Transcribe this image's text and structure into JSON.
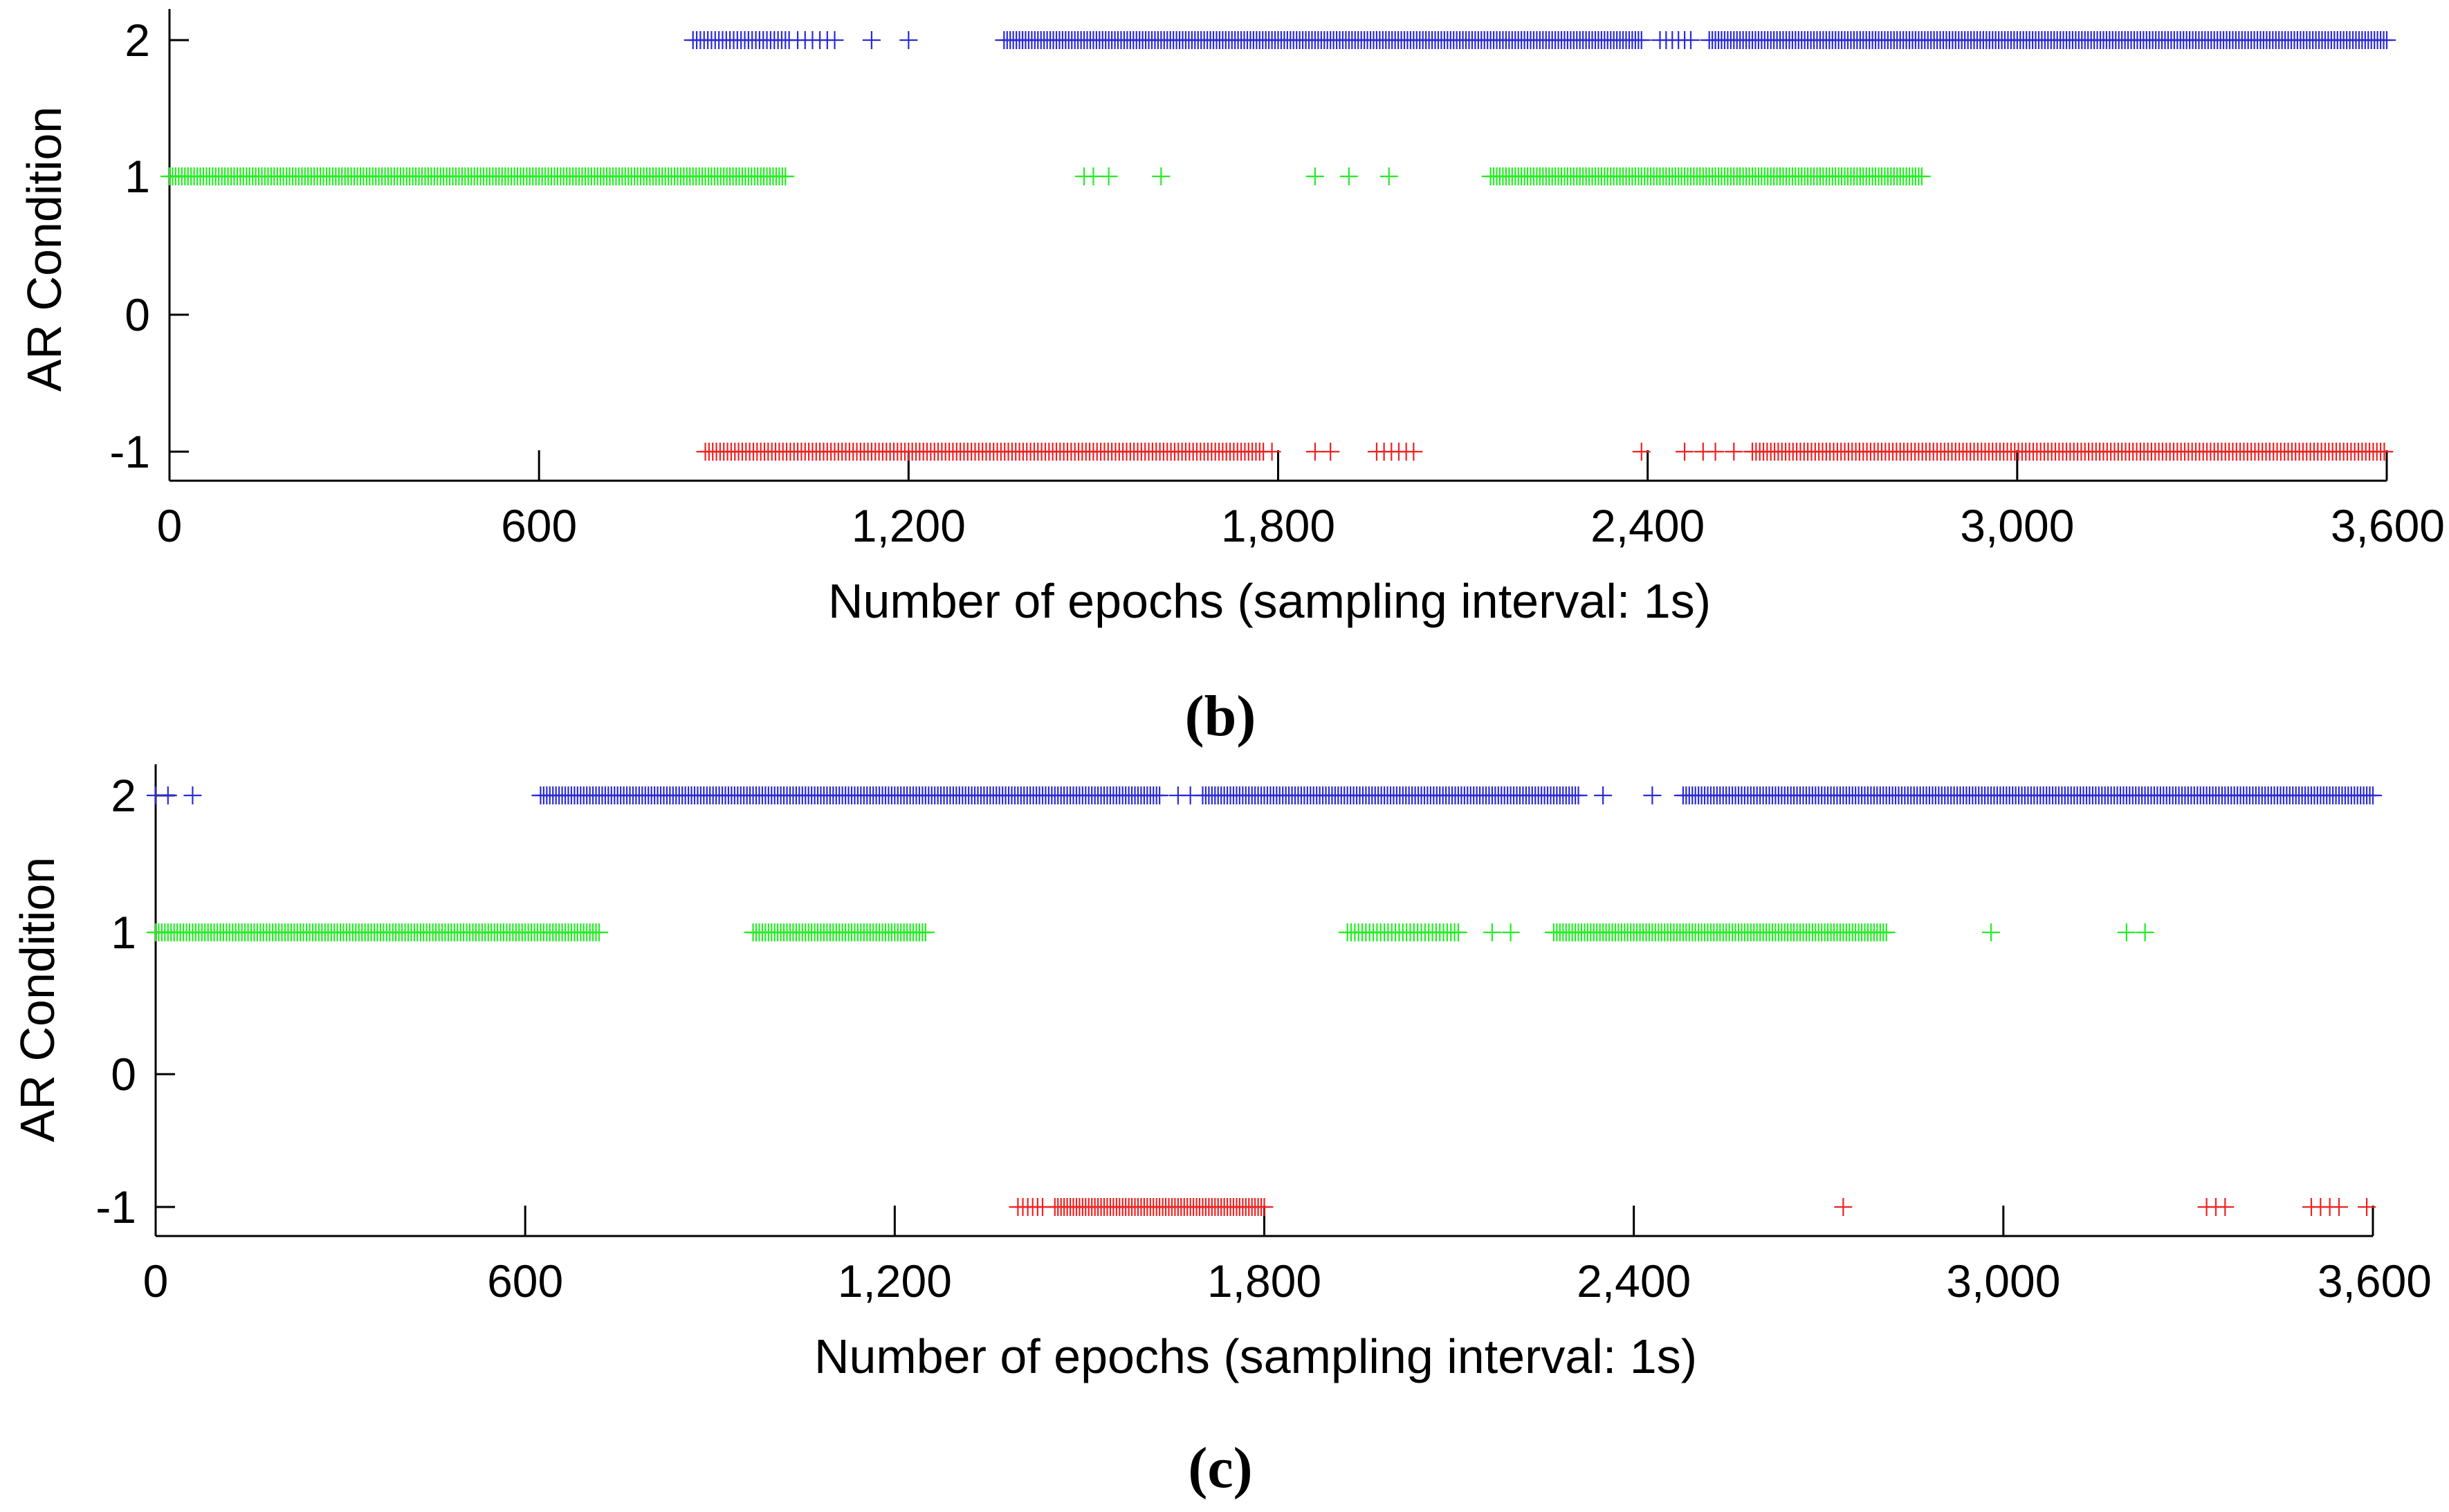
{
  "colors": {
    "class_2": "#2b2bd6",
    "class_1": "#22ee22",
    "class_neg1": "#ee2222",
    "axis": "#000000"
  },
  "chart_data": [
    {
      "id": "b",
      "type": "scatter",
      "caption_letter": "b",
      "caption_open": "(",
      "caption_close": ")",
      "xlabel": "Number of epochs (sampling interval: 1s)",
      "ylabel": "AR Condition",
      "xlim": [
        0,
        3600
      ],
      "ylim": [
        -1.2,
        2.2
      ],
      "xticks": [
        {
          "value": 0,
          "label": "0"
        },
        {
          "value": 600,
          "label": "600"
        },
        {
          "value": 1200,
          "label": "1,200"
        },
        {
          "value": 1800,
          "label": "1,800"
        },
        {
          "value": 2400,
          "label": "2,400"
        },
        {
          "value": 3000,
          "label": "3,000"
        },
        {
          "value": 3600,
          "label": "3,600"
        }
      ],
      "yticks": [
        {
          "value": 2,
          "label": "2"
        },
        {
          "value": 1,
          "label": "1"
        },
        {
          "value": 0,
          "label": "0"
        },
        {
          "value": -1,
          "label": "-1"
        }
      ],
      "series": [
        {
          "name": "AR condition 2",
          "y": 2,
          "color_key": "class_2",
          "runs": [
            [
              850,
              1010,
              6
            ],
            [
              1020,
              1090,
              12
            ]
          ],
          "points": [
            1140,
            1200,
            1385
          ],
          "runs2": [
            [
              1355,
              2390,
              5
            ],
            [
              2420,
              2470,
              10
            ],
            [
              2500,
              3600,
              5
            ]
          ]
        },
        {
          "name": "AR condition 1",
          "y": 1,
          "color_key": "class_1",
          "runs": [
            [
              0,
              1000,
              5
            ],
            [
              2145,
              2845,
              5
            ]
          ],
          "points": [
            1485,
            1500,
            1525,
            1610,
            1860,
            1915,
            1980
          ]
        },
        {
          "name": "AR condition -1",
          "y": -1,
          "color_key": "class_neg1",
          "runs": [
            [
              870,
              1780,
              6
            ],
            [
              1960,
              2030,
              12
            ],
            [
              2570,
              3600,
              6
            ]
          ],
          "points": [
            1790,
            1860,
            1885,
            2390,
            2460,
            2490,
            2510,
            2540
          ]
        }
      ]
    },
    {
      "id": "c",
      "type": "scatter",
      "caption_letter": "c",
      "caption_open": "(",
      "caption_close": ")",
      "xlabel": "Number of epochs (sampling interval: 1s)",
      "ylabel": "AR Condition",
      "xlim": [
        0,
        3600
      ],
      "ylim": [
        -1.2,
        2.2
      ],
      "xticks": [
        {
          "value": 0,
          "label": "0"
        },
        {
          "value": 600,
          "label": "600"
        },
        {
          "value": 1200,
          "label": "1,200"
        },
        {
          "value": 1800,
          "label": "1,800"
        },
        {
          "value": 2400,
          "label": "2,400"
        },
        {
          "value": 3000,
          "label": "3,000"
        },
        {
          "value": 3600,
          "label": "3,600"
        }
      ],
      "yticks": [
        {
          "value": 2,
          "label": "2"
        },
        {
          "value": 1,
          "label": "1"
        },
        {
          "value": 0,
          "label": "0"
        },
        {
          "value": -1,
          "label": "-1"
        }
      ],
      "series": [
        {
          "name": "AR condition 2",
          "y": 2,
          "color_key": "class_2",
          "runs": [
            [
              625,
              1630,
              5
            ],
            [
              1700,
              2310,
              5
            ],
            [
              2480,
              3600,
              5
            ]
          ],
          "points": [
            0,
            20,
            60,
            1660,
            1680,
            2350,
            2430
          ]
        },
        {
          "name": "AR condition 1",
          "y": 1,
          "color_key": "class_1",
          "runs": [
            [
              0,
              720,
              5
            ],
            [
              970,
              1250,
              5
            ],
            [
              1935,
              2120,
              6
            ],
            [
              2270,
              2810,
              5
            ]
          ],
          "points": [
            2170,
            2200,
            2980,
            3200,
            3230
          ]
        },
        {
          "name": "AR condition -1",
          "y": -1,
          "color_key": "class_neg1",
          "runs": [
            [
              1400,
              1440,
              8
            ],
            [
              1460,
              1800,
              5
            ]
          ],
          "points": [
            2740,
            3330,
            3345,
            3360,
            3500,
            3515,
            3530,
            3545,
            3590
          ]
        }
      ]
    }
  ]
}
